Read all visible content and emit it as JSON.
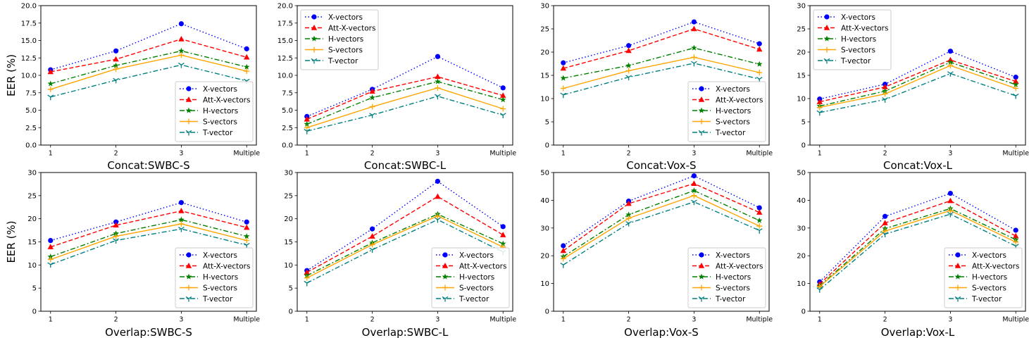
{
  "figure": {
    "colors": {
      "X-vectors": "#0000ff",
      "Att-X-vectors": "#ff0000",
      "H-vectors": "#008000",
      "S-vectors": "#ffa500",
      "T-vector": "#008080"
    }
  },
  "chart_data": [
    {
      "type": "line",
      "title": "",
      "xlabel": "Concat:SWBC-S",
      "ylabel": "EER (%)",
      "categories": [
        "1",
        "2",
        "3",
        "Multiple"
      ],
      "ylim": [
        0,
        20
      ],
      "yticks": [
        "0.0",
        "2.5",
        "5.0",
        "7.5",
        "10.0",
        "12.5",
        "15.0",
        "17.5",
        "20.0"
      ],
      "legend": "lower-right",
      "series": [
        {
          "name": "X-vectors",
          "values": [
            10.8,
            13.5,
            17.4,
            13.8
          ]
        },
        {
          "name": "Att-X-vectors",
          "values": [
            10.5,
            12.3,
            15.2,
            12.6
          ]
        },
        {
          "name": "H-vectors",
          "values": [
            8.8,
            11.4,
            13.5,
            11.2
          ]
        },
        {
          "name": "S-vectors",
          "values": [
            8.0,
            10.9,
            12.9,
            10.6
          ]
        },
        {
          "name": "T-vector",
          "values": [
            6.9,
            9.3,
            11.5,
            9.2
          ]
        }
      ]
    },
    {
      "type": "line",
      "title": "",
      "xlabel": "Concat:SWBC-L",
      "ylabel": "",
      "categories": [
        "1",
        "2",
        "3",
        "Multiple"
      ],
      "ylim": [
        0,
        20
      ],
      "yticks": [
        "0.0",
        "2.5",
        "5.0",
        "7.5",
        "10.0",
        "12.5",
        "15.0",
        "17.5",
        "20.0"
      ],
      "legend": "upper-left",
      "series": [
        {
          "name": "X-vectors",
          "values": [
            4.1,
            8.0,
            12.7,
            8.2
          ]
        },
        {
          "name": "Att-X-vectors",
          "values": [
            3.7,
            7.7,
            9.8,
            7.1
          ]
        },
        {
          "name": "H-vectors",
          "values": [
            3.0,
            6.8,
            9.1,
            6.5
          ]
        },
        {
          "name": "S-vectors",
          "values": [
            2.5,
            5.5,
            8.2,
            5.2
          ]
        },
        {
          "name": "T-vector",
          "values": [
            2.0,
            4.3,
            7.0,
            4.3
          ]
        }
      ]
    },
    {
      "type": "line",
      "title": "",
      "xlabel": "Concat:Vox-S",
      "ylabel": "",
      "categories": [
        "1",
        "2",
        "3",
        "Multiple"
      ],
      "ylim": [
        0,
        30
      ],
      "yticks": [
        "0",
        "5",
        "10",
        "15",
        "20",
        "25",
        "30"
      ],
      "legend": "lower-right",
      "series": [
        {
          "name": "X-vectors",
          "values": [
            17.7,
            21.4,
            26.5,
            21.8
          ]
        },
        {
          "name": "Att-X-vectors",
          "values": [
            16.5,
            20.3,
            25.0,
            20.6
          ]
        },
        {
          "name": "H-vectors",
          "values": [
            14.4,
            17.1,
            20.9,
            17.4
          ]
        },
        {
          "name": "S-vectors",
          "values": [
            12.2,
            16.0,
            18.9,
            15.6
          ]
        },
        {
          "name": "T-vector",
          "values": [
            10.8,
            14.6,
            17.6,
            14.2
          ]
        }
      ]
    },
    {
      "type": "line",
      "title": "",
      "xlabel": "Concat:Vox-L",
      "ylabel": "",
      "categories": [
        "1",
        "2",
        "3",
        "Multiple"
      ],
      "ylim": [
        0,
        30
      ],
      "yticks": [
        "0",
        "5",
        "10",
        "15",
        "20",
        "25",
        "30"
      ],
      "legend": "upper-left",
      "series": [
        {
          "name": "X-vectors",
          "values": [
            9.9,
            13.1,
            20.2,
            14.6
          ]
        },
        {
          "name": "Att-X-vectors",
          "values": [
            9.3,
            12.5,
            18.3,
            13.7
          ]
        },
        {
          "name": "H-vectors",
          "values": [
            8.4,
            11.6,
            17.8,
            13.0
          ]
        },
        {
          "name": "S-vectors",
          "values": [
            8.1,
            11.0,
            17.1,
            12.2
          ]
        },
        {
          "name": "T-vector",
          "values": [
            7.0,
            9.8,
            15.4,
            10.6
          ]
        }
      ]
    },
    {
      "type": "line",
      "title": "",
      "xlabel": "Overlap:SWBC-S",
      "ylabel": "EER (%)",
      "categories": [
        "1",
        "2",
        "3",
        "Multiple"
      ],
      "ylim": [
        0,
        30
      ],
      "yticks": [
        "0",
        "5",
        "10",
        "15",
        "20",
        "25",
        "30"
      ],
      "legend": "lower-right",
      "series": [
        {
          "name": "X-vectors",
          "values": [
            15.3,
            19.3,
            23.5,
            19.3
          ]
        },
        {
          "name": "Att-X-vectors",
          "values": [
            13.9,
            18.6,
            21.7,
            18.1
          ]
        },
        {
          "name": "H-vectors",
          "values": [
            11.8,
            16.8,
            19.8,
            16.2
          ]
        },
        {
          "name": "S-vectors",
          "values": [
            11.2,
            16.2,
            18.9,
            15.3
          ]
        },
        {
          "name": "T-vector",
          "values": [
            10.1,
            15.3,
            17.8,
            14.3
          ]
        }
      ]
    },
    {
      "type": "line",
      "title": "",
      "xlabel": "Overlap:SWBC-L",
      "ylabel": "",
      "categories": [
        "1",
        "2",
        "3",
        "Multiple"
      ],
      "ylim": [
        0,
        30
      ],
      "yticks": [
        "0",
        "5",
        "10",
        "15",
        "20",
        "25",
        "30"
      ],
      "legend": "lower-right",
      "series": [
        {
          "name": "X-vectors",
          "values": [
            8.8,
            17.8,
            28.1,
            18.3
          ]
        },
        {
          "name": "Att-X-vectors",
          "values": [
            8.4,
            16.2,
            24.8,
            16.5
          ]
        },
        {
          "name": "H-vectors",
          "values": [
            7.7,
            14.8,
            21.0,
            14.6
          ]
        },
        {
          "name": "S-vectors",
          "values": [
            7.2,
            14.4,
            20.6,
            13.9
          ]
        },
        {
          "name": "T-vector",
          "values": [
            6.1,
            13.3,
            19.8,
            12.8
          ]
        }
      ]
    },
    {
      "type": "line",
      "title": "",
      "xlabel": "Overlap:Vox-S",
      "ylabel": "",
      "categories": [
        "1",
        "2",
        "3",
        "Multiple"
      ],
      "ylim": [
        0,
        50
      ],
      "yticks": [
        "0",
        "10",
        "20",
        "30",
        "40",
        "50"
      ],
      "legend": "lower-right",
      "series": [
        {
          "name": "X-vectors",
          "values": [
            23.6,
            39.7,
            48.8,
            37.3
          ]
        },
        {
          "name": "Att-X-vectors",
          "values": [
            21.8,
            38.8,
            46.0,
            35.6
          ]
        },
        {
          "name": "H-vectors",
          "values": [
            19.7,
            34.8,
            43.5,
            32.7
          ]
        },
        {
          "name": "S-vectors",
          "values": [
            18.9,
            33.5,
            41.7,
            30.7
          ]
        },
        {
          "name": "T-vector",
          "values": [
            16.7,
            31.7,
            39.4,
            29.1
          ]
        }
      ]
    },
    {
      "type": "line",
      "title": "",
      "xlabel": "Overlap:Vox-L",
      "ylabel": "",
      "categories": [
        "1",
        "2",
        "3",
        "Multiple"
      ],
      "ylim": [
        0,
        50
      ],
      "yticks": [
        "0",
        "10",
        "20",
        "30",
        "40",
        "50"
      ],
      "legend": "lower-right",
      "series": [
        {
          "name": "X-vectors",
          "values": [
            10.6,
            34.2,
            42.5,
            29.2
          ]
        },
        {
          "name": "Att-X-vectors",
          "values": [
            9.8,
            31.8,
            39.8,
            27.1
          ]
        },
        {
          "name": "H-vectors",
          "values": [
            9.2,
            29.8,
            37.0,
            25.8
          ]
        },
        {
          "name": "S-vectors",
          "values": [
            8.9,
            28.9,
            36.3,
            24.9
          ]
        },
        {
          "name": "T-vector",
          "values": [
            7.8,
            27.8,
            35.0,
            23.5
          ]
        }
      ]
    }
  ]
}
